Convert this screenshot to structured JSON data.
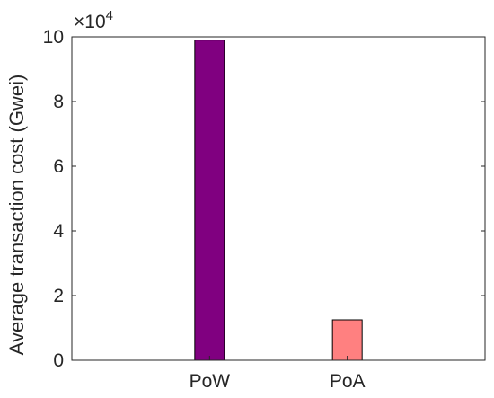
{
  "chart_data": {
    "type": "bar",
    "categories": [
      "PoW",
      "PoA"
    ],
    "values": [
      99000,
      12500
    ],
    "ylabel": "Average transaction cost (Gwei)",
    "xlabel": "",
    "ylim": [
      0,
      100000
    ],
    "yticks": [
      0,
      2,
      4,
      6,
      8,
      10
    ],
    "yscale_exponent_base": "×10",
    "yscale_exponent_power": "4",
    "colors": [
      "#800080",
      "#ff8080"
    ],
    "grid": false
  }
}
